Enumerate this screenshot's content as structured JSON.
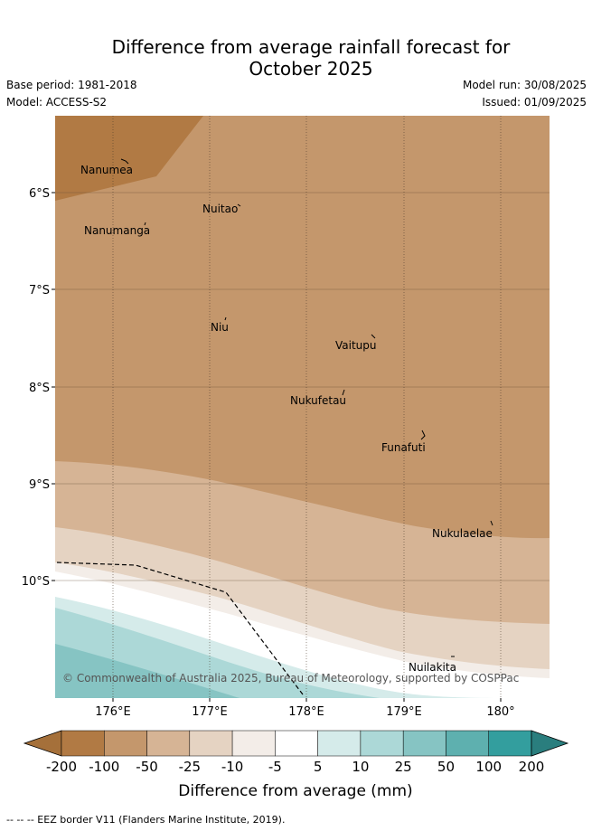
{
  "title_line1": "Difference from average rainfall forecast for",
  "title_line2": "October 2025",
  "base_period": "Base period: 1981-2018",
  "model": "Model: ACCESS-S2",
  "model_run": "Model run: 30/08/2025",
  "issued": "Issued: 01/09/2025",
  "copyright": "© Commonwealth of Australia 2025, Bureau of Meteorology, supported by COSPPac",
  "lat_labels": [
    "6°S",
    "7°S",
    "8°S",
    "9°S",
    "10°S"
  ],
  "lon_labels": [
    "176°E",
    "177°E",
    "178°E",
    "179°E",
    "180°"
  ],
  "places": [
    "Nanumea",
    "Nuitao",
    "Nanumanga",
    "Niu",
    "Vaitupu",
    "Nukufetau",
    "Funafuti",
    "Nukulaelae",
    "Nuilakita"
  ],
  "colorbar": {
    "ticks": [
      "-200",
      "-100",
      "-50",
      "-25",
      "-10",
      "-5",
      "5",
      "10",
      "25",
      "50",
      "100",
      "200"
    ],
    "colors": [
      "#a5703a",
      "#b17a44",
      "#c4976c",
      "#d6b495",
      "#e5d3c2",
      "#f3ede8",
      "#ffffff",
      "#d5ebea",
      "#acd8d7",
      "#86c4c3",
      "#5eb0af",
      "#339e9e",
      "#2a7e7e"
    ],
    "label": "Difference from average (mm)"
  },
  "footer": "--  --  -- EEZ border V11 (Flanders Marine Institute, 2019)."
}
